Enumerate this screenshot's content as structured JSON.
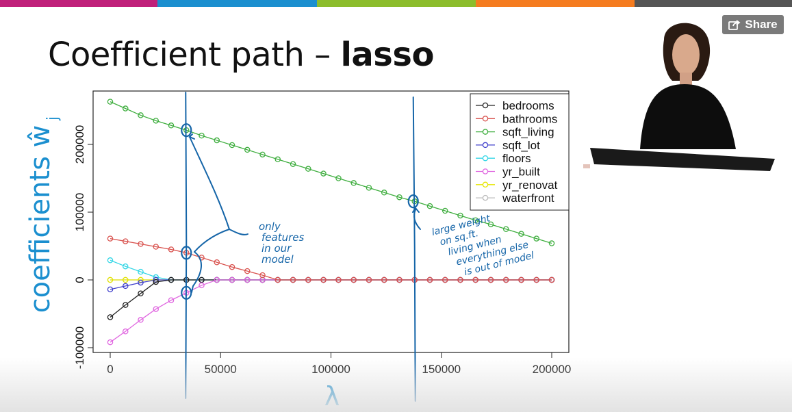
{
  "title": {
    "regular": "Coefficient path – ",
    "bold": "lasso"
  },
  "share_button": {
    "label": "Share",
    "icon": "share-icon"
  },
  "top_bar_colors": [
    "#c0207a",
    "#1b8fcf",
    "#8cbd2c",
    "#f57c1f",
    "#555555"
  ],
  "chart_data": {
    "type": "line",
    "xlabel": "λ",
    "ylabel": "coefficients ŵ",
    "ylabel_sub": "j",
    "xlim": [
      0,
      200000
    ],
    "ylim": [
      -100000,
      270000
    ],
    "x_ticks": [
      0,
      50000,
      100000,
      150000,
      200000
    ],
    "x_tick_labels": [
      "0",
      "50000",
      "100000",
      "150000",
      "200000"
    ],
    "y_ticks": [
      -100000,
      0,
      100000,
      200000
    ],
    "y_tick_labels": [
      "-100000",
      "0",
      "100000",
      "200000"
    ],
    "x": [
      0,
      6900,
      13800,
      20700,
      27600,
      34500,
      41400,
      48300,
      55200,
      62100,
      69000,
      75900,
      82800,
      89700,
      96600,
      103400,
      110300,
      117200,
      124100,
      131000,
      137900,
      144800,
      151700,
      158600,
      165500,
      172400,
      179300,
      186200,
      193100,
      200000
    ],
    "legend_position": "top-right",
    "series": [
      {
        "name": "bedrooms",
        "color": "#222222",
        "values": [
          -55000,
          -37000,
          -20000,
          -3000,
          0,
          0,
          0,
          0,
          0,
          0,
          0,
          0,
          0,
          0,
          0,
          0,
          0,
          0,
          0,
          0,
          0,
          0,
          0,
          0,
          0,
          0,
          0,
          0,
          0,
          0
        ]
      },
      {
        "name": "bathrooms",
        "color": "#d9534f",
        "values": [
          61000,
          57000,
          53000,
          49000,
          45000,
          40000,
          33000,
          26000,
          19000,
          13000,
          7000,
          0,
          0,
          0,
          0,
          0,
          0,
          0,
          0,
          0,
          0,
          0,
          0,
          0,
          0,
          0,
          0,
          0,
          0,
          0
        ]
      },
      {
        "name": "sqft_living",
        "color": "#3fae3f",
        "values": [
          263000,
          253000,
          243000,
          235000,
          228000,
          221000,
          213000,
          206000,
          199000,
          192000,
          185000,
          178000,
          171000,
          164000,
          157000,
          150000,
          143000,
          136000,
          129000,
          122000,
          116000,
          109000,
          102000,
          95000,
          88000,
          82000,
          75000,
          68000,
          61000,
          54000
        ]
      },
      {
        "name": "sqft_lot",
        "color": "#4040cc",
        "values": [
          -14000,
          -9000,
          -4000,
          0,
          0,
          0,
          0,
          0,
          0,
          0,
          0,
          0,
          0,
          0,
          0,
          0,
          0,
          0,
          0,
          0,
          0,
          0,
          0,
          0,
          0,
          0,
          0,
          0,
          0,
          0
        ]
      },
      {
        "name": "floors",
        "color": "#33d6e6",
        "values": [
          29000,
          20000,
          12000,
          4000,
          0,
          0,
          0,
          0,
          0,
          0,
          0,
          0,
          0,
          0,
          0,
          0,
          0,
          0,
          0,
          0,
          0,
          0,
          0,
          0,
          0,
          0,
          0,
          0,
          0,
          0
        ]
      },
      {
        "name": "yr_built",
        "color": "#e066e0",
        "values": [
          -92000,
          -76000,
          -59000,
          -43000,
          -30000,
          -19000,
          -8000,
          0,
          0,
          0,
          0,
          0,
          0,
          0,
          0,
          0,
          0,
          0,
          0,
          0,
          0,
          0,
          0,
          0,
          0,
          0,
          0,
          0,
          0,
          0
        ]
      },
      {
        "name": "yr_renovated",
        "legend_label": "yr_renovat",
        "color": "#e6e600",
        "values": [
          0,
          0,
          0,
          0,
          0,
          0,
          0,
          0,
          0,
          0,
          0,
          0,
          0,
          0,
          0,
          0,
          0,
          0,
          0,
          0,
          0,
          0,
          0,
          0,
          0,
          0,
          0,
          0,
          0,
          0
        ]
      },
      {
        "name": "waterfront",
        "color": "#bbbbbb",
        "values": [
          0,
          0,
          0,
          0,
          0,
          0,
          0,
          0,
          0,
          0,
          0,
          0,
          0,
          0,
          0,
          0,
          0,
          0,
          0,
          0,
          0,
          0,
          0,
          0,
          0,
          0,
          0,
          0,
          0,
          0
        ]
      }
    ],
    "annotations": [
      {
        "id": "note-features",
        "lines": [
          "only",
          "features",
          "in our",
          "model"
        ]
      },
      {
        "id": "note-sqft",
        "lines": [
          "large weight",
          "on sq.ft.",
          "living when",
          "everything else",
          "is out of model"
        ]
      }
    ]
  }
}
